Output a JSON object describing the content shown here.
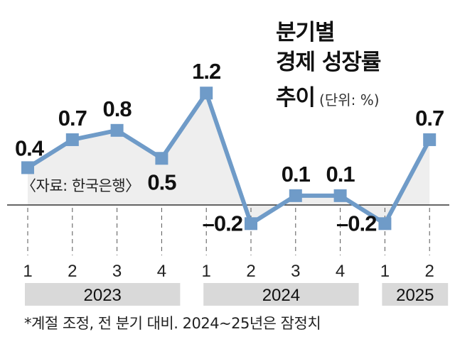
{
  "title_lines": [
    "분기별",
    "경제 성장률",
    "추이"
  ],
  "unit": "(단위: %)",
  "source": "〈자료: 한국은행〉",
  "footnote": "*계절 조정, 전 분기 대비. 2024~25년은 잠정치",
  "colors": {
    "line": "#6f9bc8",
    "area": "#eeeeee",
    "year_band": "#d9d9d9",
    "axis": "#333333"
  },
  "chart_data": {
    "type": "line",
    "title": "분기별 경제 성장률 추이",
    "unit": "%",
    "categories": [
      "1",
      "2",
      "3",
      "4",
      "1",
      "2",
      "3",
      "4",
      "1",
      "2"
    ],
    "values": [
      0.4,
      0.7,
      0.8,
      0.5,
      1.2,
      -0.2,
      0.1,
      0.1,
      -0.2,
      0.7
    ],
    "value_labels": [
      "0.4",
      "0.7",
      "0.8",
      "0.5",
      "1.2",
      "–0.2",
      "0.1",
      "0.1",
      "–0.2",
      "0.7"
    ],
    "year_groups": [
      {
        "label": "2023",
        "start": 0,
        "end": 3
      },
      {
        "label": "2024",
        "start": 4,
        "end": 7
      },
      {
        "label": "2025",
        "start": 8,
        "end": 9
      }
    ],
    "ylim": [
      -0.3,
      1.3
    ],
    "grid": false
  }
}
